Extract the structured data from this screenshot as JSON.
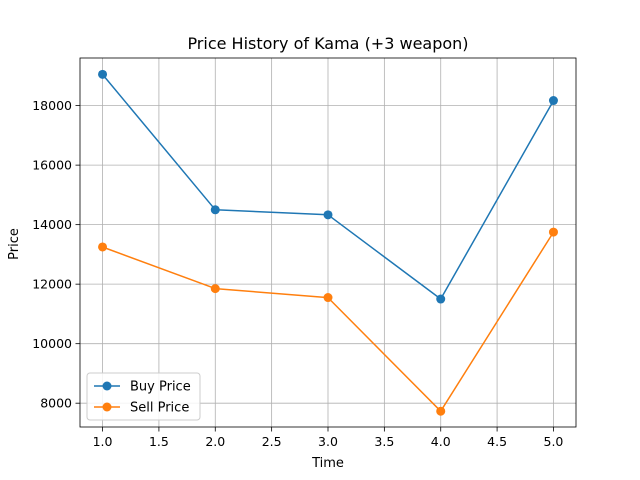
{
  "chart_data": {
    "type": "line",
    "title": "Price History of Kama (+3 weapon)",
    "xlabel": "Time",
    "ylabel": "Price",
    "x": [
      1,
      2,
      3,
      4,
      5
    ],
    "series": [
      {
        "name": "Buy Price",
        "color": "#1f77b4",
        "values": [
          19050,
          14500,
          14330,
          11500,
          18170
        ]
      },
      {
        "name": "Sell Price",
        "color": "#ff7f0e",
        "values": [
          13250,
          11850,
          11550,
          7730,
          13750
        ]
      }
    ],
    "xlim": [
      0.8,
      5.2
    ],
    "ylim": [
      7200,
      19600
    ],
    "xticks": [
      "1.0",
      "1.5",
      "2.0",
      "2.5",
      "3.0",
      "3.5",
      "4.0",
      "4.5",
      "5.0"
    ],
    "yticks": [
      "8000",
      "10000",
      "12000",
      "14000",
      "16000",
      "18000"
    ],
    "grid": true,
    "legend_position": "lower-left"
  }
}
